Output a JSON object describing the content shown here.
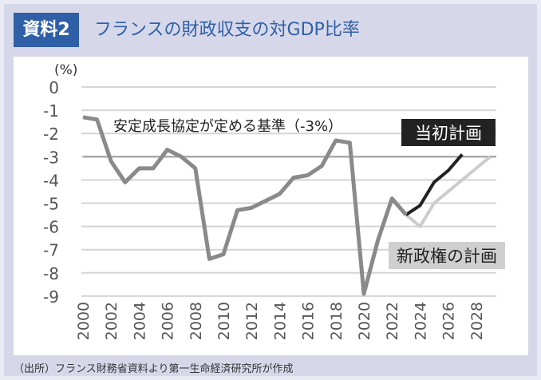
{
  "header": {
    "badge": "資料2",
    "title": "フランスの財政収支の対GDP比率"
  },
  "footer": "（出所）フランス財務省資料より第一生命経済研究所が作成",
  "chart_data": {
    "type": "line",
    "title": "フランスの財政収支の対GDP比率",
    "ylabel": "(%)",
    "ylim": [
      -9,
      0
    ],
    "yticks": [
      0,
      -1,
      -2,
      -3,
      -4,
      -5,
      -6,
      -7,
      -8,
      -9
    ],
    "xlim": [
      2000,
      2029
    ],
    "xticks": [
      2000,
      2002,
      2004,
      2006,
      2008,
      2010,
      2012,
      2014,
      2016,
      2018,
      2020,
      2022,
      2024,
      2026,
      2028
    ],
    "grid": true,
    "reference_line": {
      "value": -3,
      "label": "安定成長協定が定める基準（-3%）"
    },
    "series": [
      {
        "key": "actual",
        "color": "#8a8a8a",
        "x": [
          2000,
          2001,
          2002,
          2003,
          2004,
          2005,
          2006,
          2007,
          2008,
          2009,
          2010,
          2011,
          2012,
          2013,
          2014,
          2015,
          2016,
          2017,
          2018,
          2019,
          2020,
          2021,
          2022,
          2023
        ],
        "values": [
          -1.3,
          -1.4,
          -3.2,
          -4.1,
          -3.5,
          -3.5,
          -2.7,
          -3.0,
          -3.5,
          -7.4,
          -7.2,
          -5.3,
          -5.2,
          -4.9,
          -4.6,
          -3.9,
          -3.8,
          -3.4,
          -2.3,
          -2.4,
          -8.9,
          -6.6,
          -4.8,
          -5.5
        ]
      },
      {
        "name": "当初計画",
        "color": "#222222",
        "x": [
          2023,
          2024,
          2025,
          2026,
          2027
        ],
        "values": [
          -5.5,
          -5.1,
          -4.1,
          -3.6,
          -2.9
        ]
      },
      {
        "name": "新政権の計画",
        "color": "#cccccc",
        "x": [
          2023,
          2024,
          2025,
          2026,
          2027,
          2028,
          2029
        ],
        "values": [
          -5.5,
          -6.0,
          -5.0,
          -4.5,
          -4.0,
          -3.5,
          -3.0
        ]
      }
    ]
  }
}
